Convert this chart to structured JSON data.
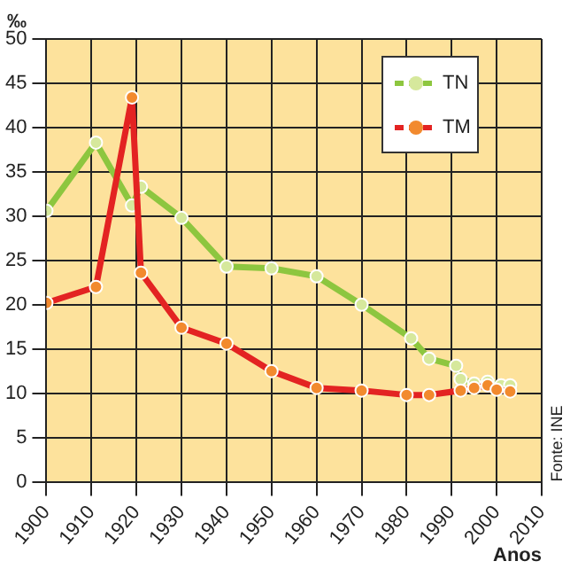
{
  "chart_data": {
    "type": "line",
    "ylabel": "‰",
    "xlabel": "Anos",
    "annotations": [
      "Fonte: INE"
    ],
    "xlim": [
      1900,
      2010
    ],
    "xticks": [
      1900,
      1910,
      1920,
      1930,
      1940,
      1950,
      1960,
      1970,
      1980,
      1990,
      2000,
      2010
    ],
    "ylim": [
      0,
      50
    ],
    "yticks": [
      0,
      5,
      10,
      15,
      20,
      25,
      30,
      35,
      40,
      45,
      50
    ],
    "grid": true,
    "legend": "top right",
    "marker": "circle",
    "series": [
      {
        "name": "TN",
        "color": "#8dc63f",
        "x": [
          1900,
          1911,
          1919,
          1921,
          1930,
          1940,
          1950,
          1960,
          1970,
          1981,
          1985,
          1991,
          1992,
          1995,
          1998,
          2001,
          2003
        ],
        "values": [
          30.6,
          38.3,
          31.2,
          33.3,
          29.8,
          24.3,
          24.1,
          23.2,
          20,
          16.2,
          13.9,
          13.1,
          11.6,
          11.1,
          11.3,
          10.9,
          10.9
        ]
      },
      {
        "name": "TM",
        "color": "#e32322",
        "x": [
          1900,
          1911,
          1919,
          1921,
          1930,
          1940,
          1950,
          1960,
          1970,
          1980,
          1985,
          1992,
          1995,
          1998,
          2000,
          2003
        ],
        "values": [
          20.2,
          22,
          43.4,
          23.6,
          17.4,
          15.6,
          12.5,
          10.6,
          10.3,
          9.8,
          9.8,
          10.3,
          10.6,
          10.9,
          10.4,
          10.2
        ]
      }
    ]
  }
}
